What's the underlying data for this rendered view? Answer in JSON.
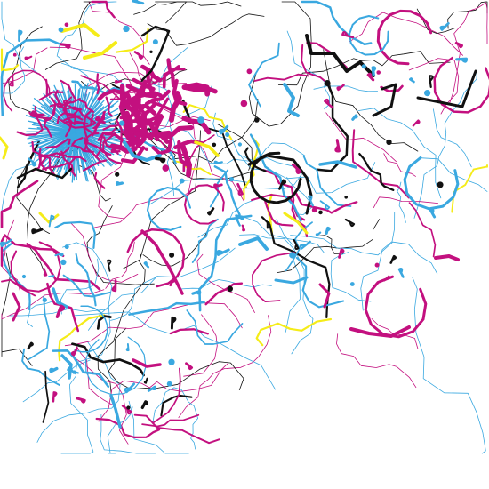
{
  "artwork": {
    "palette": {
      "magenta": "#c3107f",
      "cyan": "#3aa8e0",
      "yellow": "#f5ec19",
      "black": "#111111",
      "background": "#ffffff"
    }
  }
}
